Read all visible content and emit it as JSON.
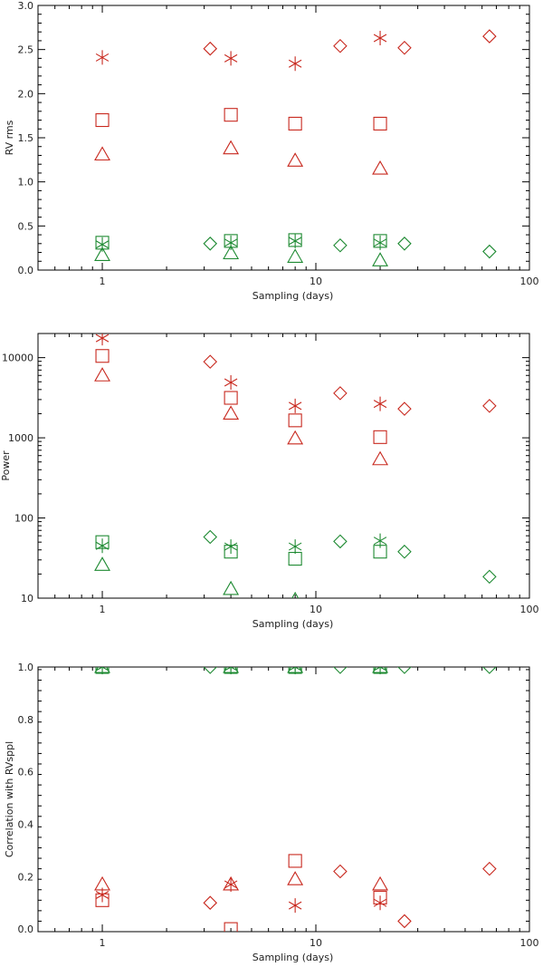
{
  "figure": {
    "description_free": true
  },
  "colors": {
    "red": "#c8281e",
    "green": "#1e8a32",
    "axis": "#000000"
  },
  "marker_legend": {
    "star": "asterisk",
    "square": "square",
    "triangle": "triangle",
    "diamond": "diamond"
  },
  "chart_data": [
    {
      "type": "scatter",
      "title": "",
      "xlabel": "Sampling (days)",
      "ylabel": "RV rms",
      "xscale": "log",
      "yscale": "linear",
      "xlim": [
        0.5,
        100
      ],
      "ylim": [
        0,
        3.0
      ],
      "xticks": [
        1,
        10,
        100
      ],
      "xtick_labels": [
        "1",
        "10",
        "100"
      ],
      "yticks": [
        0,
        0.5,
        1.0,
        1.5,
        2.0,
        2.5,
        3.0
      ],
      "ytick_labels": [
        "0.0",
        "0.5",
        "1.0",
        "1.5",
        "2.0",
        "2.5",
        "3.0"
      ],
      "series": [
        {
          "name": "red-star",
          "color": "red",
          "marker": "star",
          "x": [
            1,
            4,
            8,
            20
          ],
          "y": [
            2.41,
            2.4,
            2.34,
            2.63
          ]
        },
        {
          "name": "red-square",
          "color": "red",
          "marker": "square",
          "x": [
            1,
            4,
            8,
            20
          ],
          "y": [
            1.7,
            1.76,
            1.66,
            1.66
          ]
        },
        {
          "name": "red-triangle",
          "color": "red",
          "marker": "triangle",
          "x": [
            1,
            4,
            8,
            20
          ],
          "y": [
            1.31,
            1.38,
            1.24,
            1.15
          ]
        },
        {
          "name": "red-diamond",
          "color": "red",
          "marker": "diamond",
          "x": [
            3.2,
            13,
            26,
            65
          ],
          "y": [
            2.51,
            2.54,
            2.52,
            2.65
          ]
        },
        {
          "name": "green-star",
          "color": "green",
          "marker": "star",
          "x": [
            1,
            4,
            8,
            20
          ],
          "y": [
            0.29,
            0.31,
            0.33,
            0.31
          ]
        },
        {
          "name": "green-square",
          "color": "green",
          "marker": "square",
          "x": [
            1,
            4,
            8,
            20
          ],
          "y": [
            0.31,
            0.33,
            0.34,
            0.33
          ]
        },
        {
          "name": "green-triangle",
          "color": "green",
          "marker": "triangle",
          "x": [
            1,
            4,
            8,
            20
          ],
          "y": [
            0.17,
            0.19,
            0.15,
            0.11
          ]
        },
        {
          "name": "green-diamond",
          "color": "green",
          "marker": "diamond",
          "x": [
            3.2,
            13,
            26,
            65
          ],
          "y": [
            0.3,
            0.28,
            0.3,
            0.21
          ]
        }
      ]
    },
    {
      "type": "scatter",
      "title": "",
      "xlabel": "Sampling (days)",
      "ylabel": "Power",
      "xscale": "log",
      "yscale": "log",
      "xlim": [
        0.5,
        100
      ],
      "ylim": [
        10,
        20000
      ],
      "xticks": [
        1,
        10,
        100
      ],
      "xtick_labels": [
        "1",
        "10",
        "100"
      ],
      "yticks": [
        10,
        100,
        1000,
        10000
      ],
      "ytick_labels": [
        "10",
        "100",
        "1000",
        "10000"
      ],
      "series": [
        {
          "name": "red-star",
          "color": "red",
          "marker": "star",
          "x": [
            1,
            4,
            8,
            20
          ],
          "y": [
            17500,
            4900,
            2500,
            2650
          ]
        },
        {
          "name": "red-square",
          "color": "red",
          "marker": "square",
          "x": [
            1,
            4,
            8,
            20
          ],
          "y": [
            10500,
            3150,
            1650,
            1020
          ]
        },
        {
          "name": "red-triangle",
          "color": "red",
          "marker": "triangle",
          "x": [
            1,
            4,
            8,
            20
          ],
          "y": [
            6000,
            2000,
            980,
            540
          ]
        },
        {
          "name": "red-diamond",
          "color": "red",
          "marker": "diamond",
          "x": [
            3.2,
            13,
            26,
            65
          ],
          "y": [
            8900,
            3600,
            2300,
            2500
          ]
        },
        {
          "name": "green-star",
          "color": "green",
          "marker": "star",
          "x": [
            1,
            4,
            8,
            20
          ],
          "y": [
            45,
            44,
            44,
            52
          ]
        },
        {
          "name": "green-square",
          "color": "green",
          "marker": "square",
          "x": [
            1,
            4,
            8,
            20
          ],
          "y": [
            50,
            38,
            31,
            38
          ]
        },
        {
          "name": "green-triangle",
          "color": "green",
          "marker": "triangle",
          "x": [
            1,
            4,
            8
          ],
          "y": [
            26,
            13,
            9.5
          ]
        },
        {
          "name": "green-diamond",
          "color": "green",
          "marker": "diamond",
          "x": [
            3.2,
            13,
            26,
            65
          ],
          "y": [
            58,
            51,
            38,
            18.5
          ]
        }
      ]
    },
    {
      "type": "scatter",
      "title": "",
      "xlabel": "Sampling (days)",
      "ylabel": "Correlation with RVsppl",
      "xscale": "log",
      "yscale": "linear",
      "xlim": [
        0.5,
        100
      ],
      "ylim": [
        -0.01,
        1.0
      ],
      "xticks": [
        1,
        10,
        100
      ],
      "xtick_labels": [
        "1",
        "10",
        "100"
      ],
      "yticks": [
        0.0,
        0.2,
        0.4,
        0.6,
        0.8,
        1.0
      ],
      "ytick_labels": [
        "0.0",
        "0.2",
        "0.4",
        "0.6",
        "0.8",
        "1.0"
      ],
      "series": [
        {
          "name": "red-star",
          "color": "red",
          "marker": "star",
          "x": [
            1,
            4,
            8,
            20
          ],
          "y": [
            0.13,
            0.17,
            0.09,
            0.1
          ]
        },
        {
          "name": "red-square",
          "color": "red",
          "marker": "square",
          "x": [
            1,
            4,
            8,
            20
          ],
          "y": [
            0.11,
            0.0,
            0.26,
            0.12
          ]
        },
        {
          "name": "red-triangle",
          "color": "red",
          "marker": "triangle",
          "x": [
            1,
            4,
            8,
            20
          ],
          "y": [
            0.17,
            0.17,
            0.19,
            0.17
          ]
        },
        {
          "name": "red-diamond",
          "color": "red",
          "marker": "diamond",
          "x": [
            3.2,
            13,
            26,
            65
          ],
          "y": [
            0.1,
            0.22,
            0.03,
            0.23
          ]
        },
        {
          "name": "green-star",
          "color": "green",
          "marker": "star",
          "x": [
            1,
            4,
            8,
            20
          ],
          "y": [
            1.0,
            1.0,
            1.0,
            1.0
          ]
        },
        {
          "name": "green-square",
          "color": "green",
          "marker": "square",
          "x": [
            1,
            4,
            8,
            20
          ],
          "y": [
            1.0,
            1.0,
            1.0,
            1.0
          ]
        },
        {
          "name": "green-triangle",
          "color": "green",
          "marker": "triangle",
          "x": [
            1,
            4,
            8,
            20
          ],
          "y": [
            1.0,
            1.0,
            1.0,
            1.0
          ]
        },
        {
          "name": "green-diamond",
          "color": "green",
          "marker": "diamond",
          "x": [
            3.2,
            13,
            26,
            65
          ],
          "y": [
            1.0,
            1.0,
            1.0,
            1.0
          ]
        }
      ]
    }
  ]
}
